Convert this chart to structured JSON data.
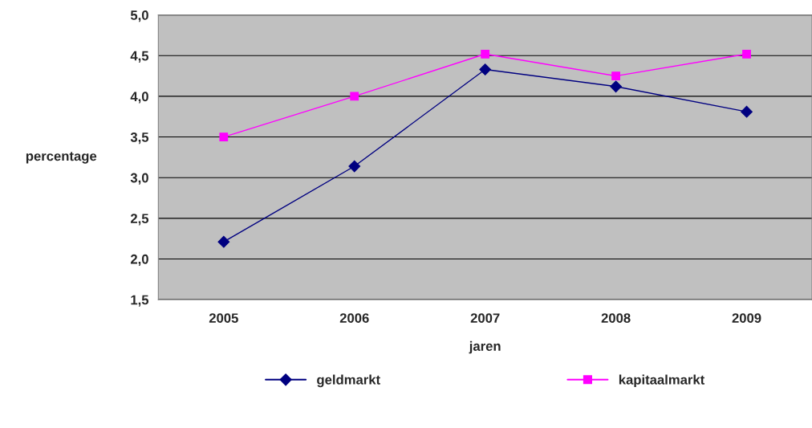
{
  "chart_data": {
    "type": "line",
    "xlabel": "jaren",
    "ylabel": "percentage",
    "categories": [
      "2005",
      "2006",
      "2007",
      "2008",
      "2009"
    ],
    "series": [
      {
        "name": "geldmarkt",
        "color": "#000080",
        "marker": "diamond",
        "values": [
          2.21,
          3.14,
          4.33,
          4.12,
          3.81
        ]
      },
      {
        "name": "kapitaalmarkt",
        "color": "#ff00ff",
        "marker": "square",
        "values": [
          3.5,
          4.0,
          4.52,
          4.25,
          4.52
        ]
      }
    ],
    "ylim": [
      1.5,
      5.0
    ],
    "yticks": [
      {
        "value": 1.5,
        "label": "1,5"
      },
      {
        "value": 2.0,
        "label": "2,0"
      },
      {
        "value": 2.5,
        "label": "2,5"
      },
      {
        "value": 3.0,
        "label": "3,0"
      },
      {
        "value": 3.5,
        "label": "3,5"
      },
      {
        "value": 4.0,
        "label": "4,0"
      },
      {
        "value": 4.5,
        "label": "4,5"
      },
      {
        "value": 5.0,
        "label": "5,0"
      }
    ],
    "grid": "y",
    "legend": "bottom",
    "line_style": "solid"
  }
}
